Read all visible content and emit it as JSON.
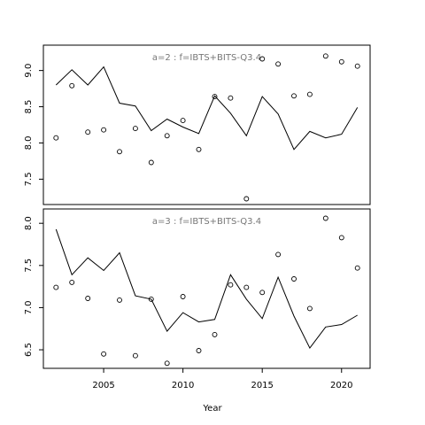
{
  "chart_data": {
    "type": "line",
    "xlabel": "Year",
    "x_ticks": [
      2005,
      2010,
      2015,
      2020
    ],
    "grid": false,
    "panels": [
      {
        "label": "a=2  :  f=IBTS+BITS-Q3.4",
        "ylim": [
          7.15,
          9.35
        ],
        "y_ticks": [
          7.5,
          8.0,
          8.5,
          9.0
        ],
        "y_tick_labels": [
          "7.5",
          "8.0",
          "8.5",
          "9.0"
        ],
        "line": {
          "x": [
            2002,
            2003,
            2004,
            2005,
            2006,
            2007,
            2008,
            2009,
            2010,
            2011,
            2012,
            2013,
            2014,
            2015,
            2016,
            2017,
            2018,
            2019,
            2020,
            2021
          ],
          "y": [
            8.8,
            9.01,
            8.8,
            9.05,
            8.55,
            8.51,
            8.17,
            8.33,
            8.22,
            8.13,
            8.65,
            8.41,
            8.1,
            8.64,
            8.4,
            7.91,
            8.16,
            8.07,
            8.12,
            8.49
          ]
        },
        "points": {
          "x": [
            2002,
            2003,
            2004,
            2005,
            2006,
            2007,
            2008,
            2009,
            2010,
            2011,
            2012,
            2013,
            2014,
            2015,
            2016,
            2017,
            2018,
            2019,
            2020,
            2021
          ],
          "y": [
            8.07,
            8.79,
            8.15,
            8.18,
            7.88,
            8.2,
            7.73,
            8.1,
            8.31,
            7.91,
            8.64,
            8.62,
            7.23,
            9.16,
            9.09,
            8.65,
            8.67,
            9.2,
            9.12,
            9.06
          ]
        }
      },
      {
        "label": "a=3  :  f=IBTS+BITS-Q3.4",
        "ylim": [
          6.28,
          8.17
        ],
        "y_ticks": [
          6.5,
          7.0,
          7.5,
          8.0
        ],
        "y_tick_labels": [
          "6.5",
          "7.0",
          "7.5",
          "8.0"
        ],
        "line": {
          "x": [
            2002,
            2003,
            2004,
            2005,
            2006,
            2007,
            2008,
            2009,
            2010,
            2011,
            2012,
            2013,
            2014,
            2015,
            2016,
            2017,
            2018,
            2019,
            2020,
            2021
          ],
          "y": [
            7.93,
            7.39,
            7.59,
            7.44,
            7.65,
            7.14,
            7.1,
            6.72,
            6.94,
            6.83,
            6.86,
            7.39,
            7.1,
            6.87,
            7.36,
            6.9,
            6.52,
            6.77,
            6.8,
            6.91
          ]
        },
        "points": {
          "x": [
            2002,
            2003,
            2004,
            2005,
            2006,
            2007,
            2008,
            2009,
            2010,
            2011,
            2012,
            2013,
            2014,
            2015,
            2016,
            2017,
            2018,
            2019,
            2020,
            2021
          ],
          "y": [
            7.24,
            7.3,
            7.11,
            6.45,
            7.09,
            6.43,
            7.1,
            6.34,
            7.13,
            6.49,
            6.68,
            7.27,
            7.24,
            7.18,
            7.63,
            7.34,
            6.99,
            8.06,
            7.83,
            7.47
          ]
        }
      }
    ]
  }
}
